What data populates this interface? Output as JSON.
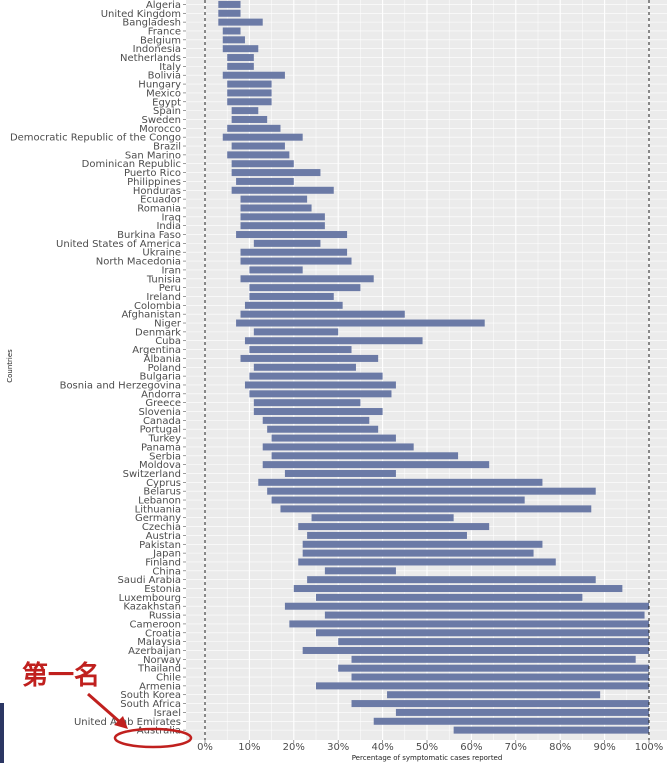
{
  "chart_data": {
    "type": "bar",
    "orientation": "horizontal",
    "xlabel": "Percentage of symptomatic cases reported",
    "ylabel": "Countries",
    "xlim": [
      0,
      100
    ],
    "x_ticks": [
      "0%",
      "10%",
      "20%",
      "30%",
      "40%",
      "50%",
      "60%",
      "70%",
      "80%",
      "90%",
      "100%"
    ],
    "grid": true,
    "bar_color": "#6b7aa6",
    "background_color": "#ebebeb",
    "reference_lines": [
      0,
      100
    ],
    "categories": [
      "Algeria",
      "United Kingdom",
      "Bangladesh",
      "France",
      "Belgium",
      "Indonesia",
      "Netherlands",
      "Italy",
      "Bolivia",
      "Hungary",
      "Mexico",
      "Egypt",
      "Spain",
      "Sweden",
      "Morocco",
      "Democratic Republic of the Congo",
      "Brazil",
      "San Marino",
      "Dominican Republic",
      "Puerto Rico",
      "Philippines",
      "Honduras",
      "Ecuador",
      "Romania",
      "Iraq",
      "India",
      "Burkina Faso",
      "United States of America",
      "Ukraine",
      "North Macedonia",
      "Iran",
      "Tunisia",
      "Peru",
      "Ireland",
      "Colombia",
      "Afghanistan",
      "Niger",
      "Denmark",
      "Cuba",
      "Argentina",
      "Albania",
      "Poland",
      "Bulgaria",
      "Bosnia and Herzegovina",
      "Andorra",
      "Greece",
      "Slovenia",
      "Canada",
      "Portugal",
      "Turkey",
      "Panama",
      "Serbia",
      "Moldova",
      "Switzerland",
      "Cyprus",
      "Belarus",
      "Lebanon",
      "Lithuania",
      "Germany",
      "Czechia",
      "Austria",
      "Pakistan",
      "Japan",
      "Finland",
      "China",
      "Saudi Arabia",
      "Estonia",
      "Luxembourg",
      "Kazakhstan",
      "Russia",
      "Cameroon",
      "Croatia",
      "Malaysia",
      "Azerbaijan",
      "Norway",
      "Thailand",
      "Chile",
      "Armenia",
      "South Korea",
      "South Africa",
      "Israel",
      "United Arab Emirates",
      "Australia"
    ],
    "ranges": [
      [
        3,
        8
      ],
      [
        3,
        8
      ],
      [
        3,
        13
      ],
      [
        4,
        8
      ],
      [
        4,
        9
      ],
      [
        4,
        12
      ],
      [
        5,
        11
      ],
      [
        5,
        11
      ],
      [
        4,
        18
      ],
      [
        5,
        15
      ],
      [
        5,
        15
      ],
      [
        5,
        15
      ],
      [
        6,
        12
      ],
      [
        6,
        14
      ],
      [
        5,
        17
      ],
      [
        4,
        22
      ],
      [
        6,
        18
      ],
      [
        5,
        19
      ],
      [
        6,
        20
      ],
      [
        6,
        26
      ],
      [
        7,
        20
      ],
      [
        6,
        29
      ],
      [
        8,
        23
      ],
      [
        8,
        24
      ],
      [
        8,
        27
      ],
      [
        8,
        27
      ],
      [
        7,
        32
      ],
      [
        11,
        26
      ],
      [
        8,
        32
      ],
      [
        8,
        33
      ],
      [
        10,
        22
      ],
      [
        8,
        38
      ],
      [
        10,
        35
      ],
      [
        10,
        29
      ],
      [
        9,
        31
      ],
      [
        8,
        45
      ],
      [
        7,
        63
      ],
      [
        11,
        30
      ],
      [
        9,
        49
      ],
      [
        10,
        33
      ],
      [
        8,
        39
      ],
      [
        11,
        34
      ],
      [
        10,
        40
      ],
      [
        9,
        43
      ],
      [
        10,
        42
      ],
      [
        11,
        35
      ],
      [
        11,
        40
      ],
      [
        13,
        37
      ],
      [
        14,
        39
      ],
      [
        15,
        43
      ],
      [
        13,
        47
      ],
      [
        15,
        57
      ],
      [
        13,
        64
      ],
      [
        18,
        43
      ],
      [
        12,
        76
      ],
      [
        14,
        88
      ],
      [
        15,
        72
      ],
      [
        17,
        87
      ],
      [
        24,
        56
      ],
      [
        21,
        64
      ],
      [
        23,
        59
      ],
      [
        22,
        76
      ],
      [
        22,
        74
      ],
      [
        21,
        79
      ],
      [
        27,
        43
      ],
      [
        23,
        88
      ],
      [
        20,
        94
      ],
      [
        25,
        85
      ],
      [
        18,
        100
      ],
      [
        27,
        99
      ],
      [
        19,
        100
      ],
      [
        25,
        100
      ],
      [
        30,
        100
      ],
      [
        22,
        100
      ],
      [
        33,
        97
      ],
      [
        30,
        100
      ],
      [
        33,
        100
      ],
      [
        25,
        100
      ],
      [
        41,
        89
      ],
      [
        33,
        100
      ],
      [
        43,
        100
      ],
      [
        38,
        100
      ],
      [
        56,
        100
      ]
    ]
  },
  "annotation": {
    "text": "第一名",
    "color": "#c0201e"
  },
  "accent_strip_color": "#2b3663"
}
